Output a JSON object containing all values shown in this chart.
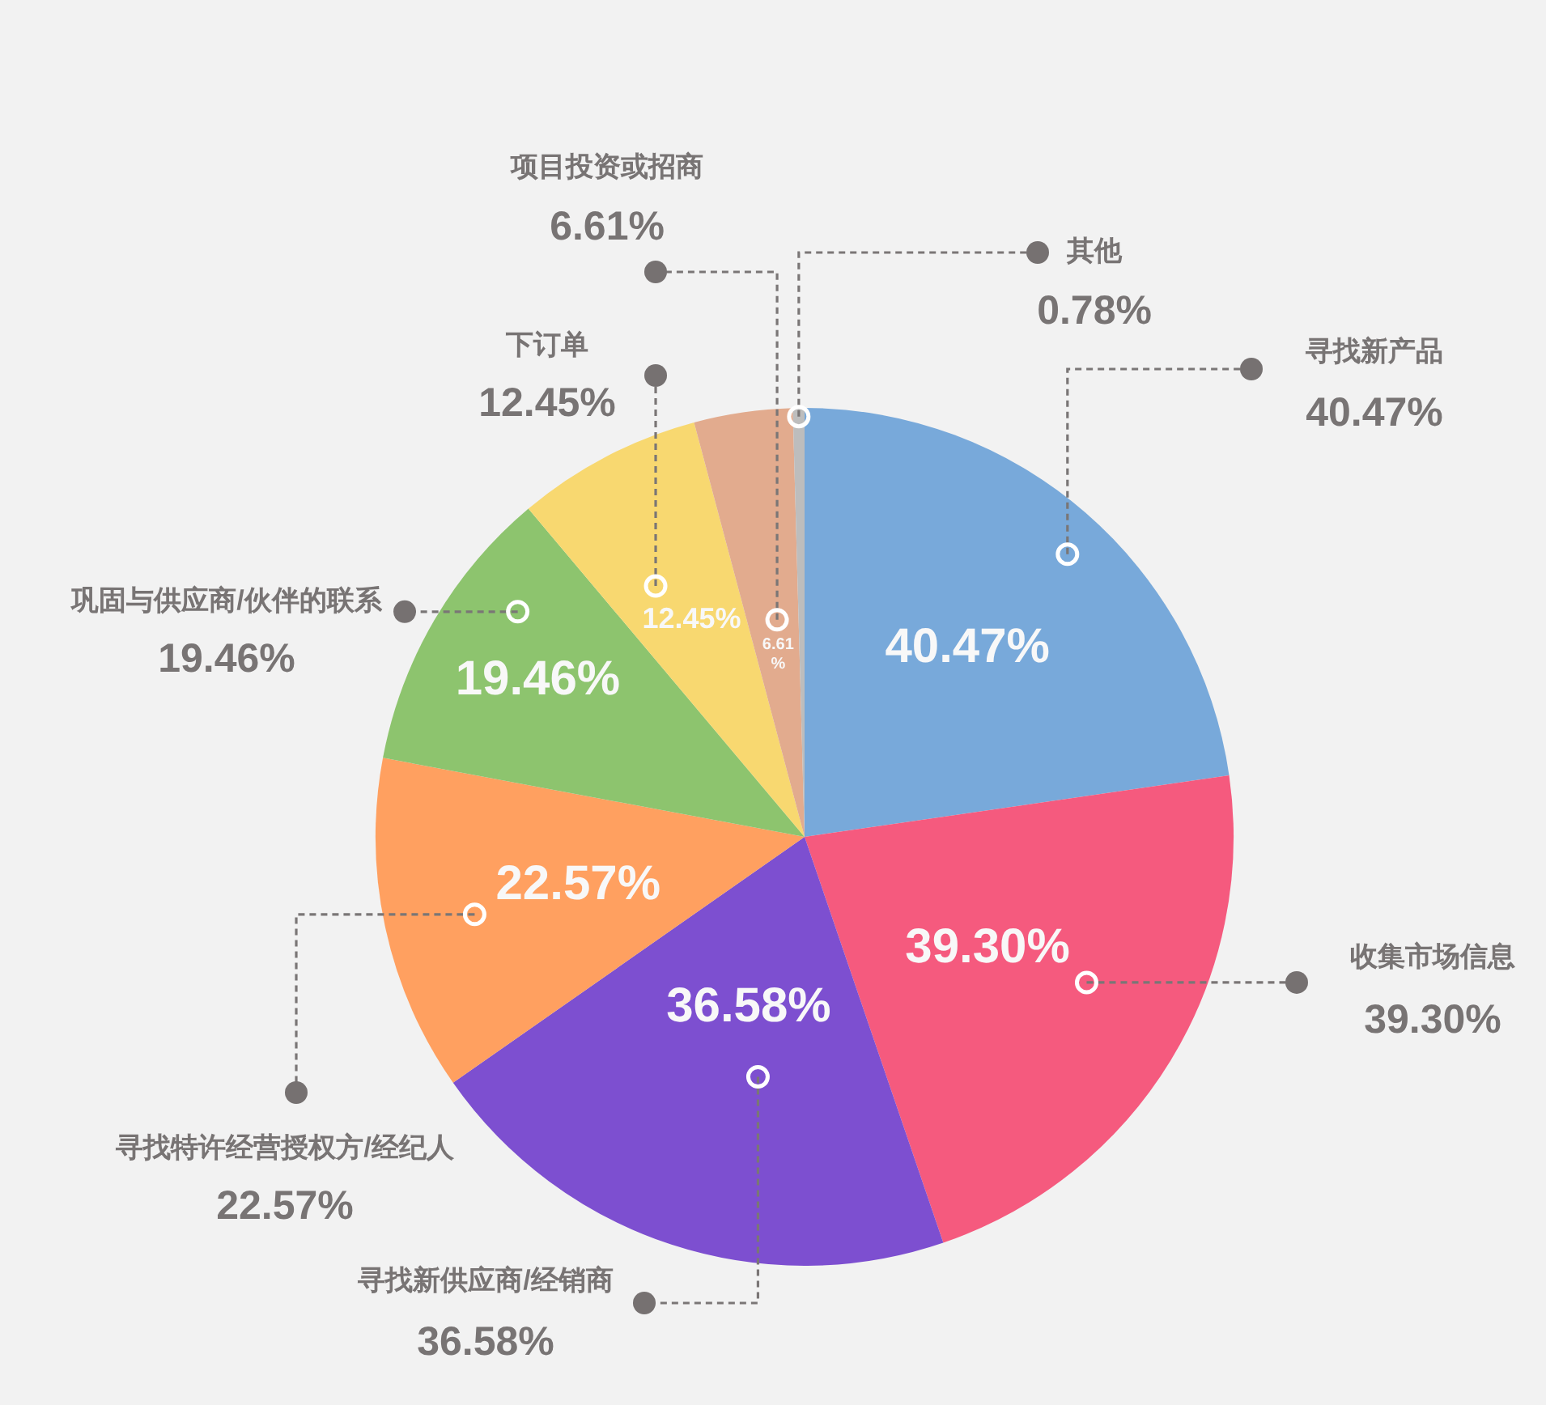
{
  "chart_data": {
    "type": "pie",
    "categories": [
      "寻找新产品",
      "收集市场信息",
      "寻找新供应商/经销商",
      "寻找特许经营授权方/经纪人",
      "巩固与供应商/伙伴的联系",
      "下订单",
      "项目投资或招商",
      "其他"
    ],
    "values": [
      40.47,
      39.3,
      36.58,
      22.57,
      19.46,
      12.45,
      6.61,
      0.78
    ],
    "colors": [
      "#78a9da",
      "#f55a7e",
      "#7d4fd0",
      "#ffa060",
      "#8dc46e",
      "#f8d870",
      "#e2ab8e",
      "#bdbdbd"
    ],
    "value_labels": [
      "40.47%",
      "39.30%",
      "36.58%",
      "22.57%",
      "19.46%",
      "12.45%",
      "6.61%",
      "0.78%"
    ],
    "legend": false
  }
}
